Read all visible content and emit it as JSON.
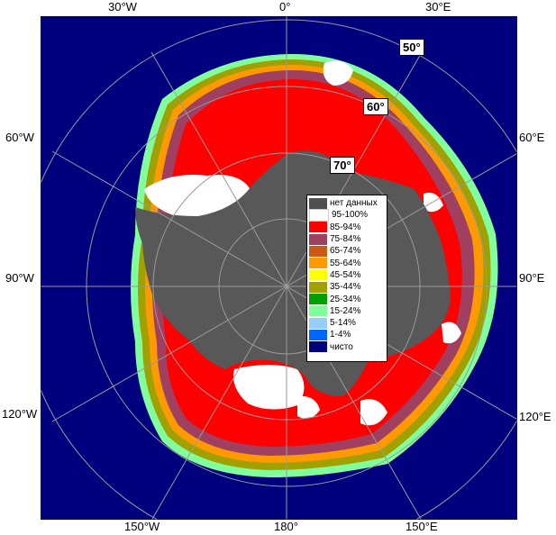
{
  "colors": {
    "ocean": "#00007f",
    "land": "#585858",
    "no_data": "#505050",
    "grid": "#9a9a9a"
  },
  "lon_labels": {
    "top_left": "30°W",
    "top_center": "0°",
    "top_right": "30°E",
    "left_upper": "60°W",
    "left_middle": "90°W",
    "left_lower": "120°W",
    "right_upper": "60°E",
    "right_middle": "90°E",
    "right_lower": "120°E",
    "bottom_left": "150°W",
    "bottom_center": "180°",
    "bottom_right": "150°E"
  },
  "lat_labels": {
    "lat50": "50°",
    "lat60": "60°",
    "lat70": "70°"
  },
  "legend": [
    {
      "label": "нет данных",
      "color": "#505050"
    },
    {
      "label": "95-100%",
      "color": "#ffffff"
    },
    {
      "label": "85-94%",
      "color": "#ff0000"
    },
    {
      "label": "75-84%",
      "color": "#a04060"
    },
    {
      "label": "65-74%",
      "color": "#cc5a14"
    },
    {
      "label": "55-64%",
      "color": "#ff9900"
    },
    {
      "label": "45-54%",
      "color": "#ffff00"
    },
    {
      "label": "35-44%",
      "color": "#a0a000"
    },
    {
      "label": "25-34%",
      "color": "#00a000"
    },
    {
      "label": "15-24%",
      "color": "#80ff9a"
    },
    {
      "label": "5-14%",
      "color": "#99ccff"
    },
    {
      "label": "1-4%",
      "color": "#0066ff"
    },
    {
      "label": "чисто",
      "color": "#00007f"
    }
  ]
}
